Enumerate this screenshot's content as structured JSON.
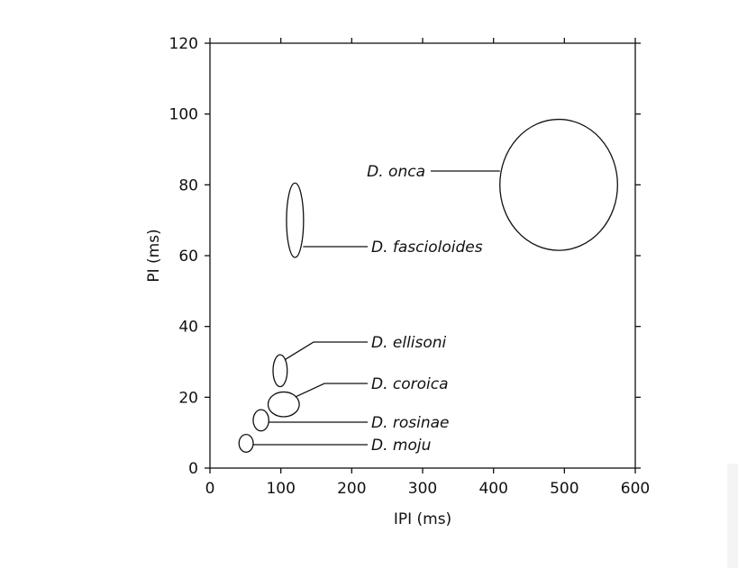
{
  "chart_data": {
    "type": "scatter",
    "xlabel": "IPI (ms)",
    "ylabel": "PI (ms)",
    "xlim": [
      0,
      600
    ],
    "ylim": [
      0,
      120
    ],
    "xticks": [
      0,
      100,
      200,
      300,
      400,
      500,
      600
    ],
    "yticks": [
      0,
      20,
      40,
      60,
      80,
      100,
      120
    ],
    "grid": false,
    "series": [
      {
        "name": "D. onca",
        "cx": 492,
        "cy": 80,
        "rx": 83,
        "ry": 18.5,
        "label_side": "left"
      },
      {
        "name": "D. fascioloides",
        "cx": 120,
        "cy": 70,
        "rx": 12,
        "ry": 10.5,
        "label_side": "right"
      },
      {
        "name": "D. ellisoni",
        "cx": 99,
        "cy": 27.5,
        "rx": 10,
        "ry": 4.5,
        "label_side": "right"
      },
      {
        "name": "D. coroica",
        "cx": 104,
        "cy": 18,
        "rx": 22,
        "ry": 3.5,
        "label_side": "right"
      },
      {
        "name": "D. rosinae",
        "cx": 72,
        "cy": 13.5,
        "rx": 11,
        "ry": 3,
        "label_side": "right"
      },
      {
        "name": "D. moju",
        "cx": 51,
        "cy": 7,
        "rx": 10,
        "ry": 2.5,
        "label_side": "right"
      }
    ]
  }
}
